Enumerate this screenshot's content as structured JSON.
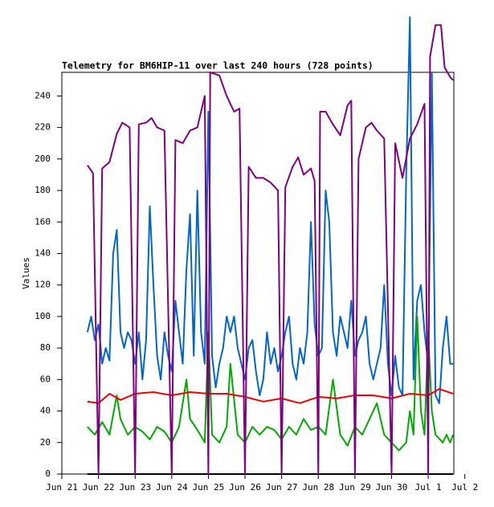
{
  "chart_data": {
    "type": "line",
    "title": "Telemetry for BM6HIP-11 over last 240 hours (728 points)",
    "y_label": "Values",
    "xlim": [
      0,
      10.7
    ],
    "ylim": [
      0,
      255
    ],
    "xticks": [
      {
        "value": 0,
        "label": "Jun 21"
      },
      {
        "value": 1,
        "label": "Jun 22"
      },
      {
        "value": 2,
        "label": "Jun 23"
      },
      {
        "value": 3,
        "label": "Jun 24"
      },
      {
        "value": 4,
        "label": "Jun 25"
      },
      {
        "value": 5,
        "label": "Jun 26"
      },
      {
        "value": 6,
        "label": "Jun 27"
      },
      {
        "value": 7,
        "label": "Jun 28"
      },
      {
        "value": 8,
        "label": "Jun 29"
      },
      {
        "value": 9,
        "label": "Jun 30"
      },
      {
        "value": 10,
        "label": "Jul 1"
      },
      {
        "value": 11,
        "label": "Jul 2"
      }
    ],
    "yticks": [
      0,
      20,
      40,
      60,
      80,
      100,
      120,
      140,
      160,
      180,
      200,
      220,
      240
    ],
    "grid": false,
    "series": [
      {
        "color": "#0066cc",
        "x": [
          0.7,
          0.8,
          0.9,
          1.0,
          1.1,
          1.2,
          1.3,
          1.4,
          1.5,
          1.6,
          1.7,
          1.8,
          1.9,
          2.0,
          2.1,
          2.2,
          2.3,
          2.4,
          2.5,
          2.6,
          2.7,
          2.8,
          2.9,
          3.0,
          3.1,
          3.2,
          3.3,
          3.4,
          3.5,
          3.6,
          3.7,
          3.8,
          3.9,
          4.0,
          4.1,
          4.2,
          4.3,
          4.4,
          4.5,
          4.6,
          4.7,
          4.8,
          4.9,
          5.0,
          5.1,
          5.2,
          5.3,
          5.4,
          5.5,
          5.6,
          5.7,
          5.8,
          5.9,
          6.0,
          6.1,
          6.2,
          6.3,
          6.4,
          6.5,
          6.6,
          6.7,
          6.8,
          6.9,
          7.0,
          7.1,
          7.2,
          7.3,
          7.4,
          7.5,
          7.6,
          7.7,
          7.8,
          7.9,
          8.0,
          8.1,
          8.2,
          8.3,
          8.4,
          8.5,
          8.6,
          8.7,
          8.8,
          8.9,
          9.0,
          9.1,
          9.2,
          9.3,
          9.4,
          9.5,
          9.6,
          9.7,
          9.8,
          9.9,
          10.0,
          10.1,
          10.2,
          10.3,
          10.4,
          10.5,
          10.6,
          10.68
        ],
        "values": [
          90,
          100,
          85,
          95,
          70,
          80,
          72,
          140,
          155,
          90,
          80,
          90,
          85,
          70,
          90,
          60,
          85,
          170,
          120,
          75,
          60,
          90,
          75,
          65,
          110,
          90,
          70,
          130,
          165,
          75,
          180,
          90,
          70,
          230,
          75,
          55,
          70,
          80,
          100,
          90,
          100,
          80,
          70,
          60,
          80,
          85,
          65,
          50,
          60,
          90,
          70,
          80,
          65,
          75,
          90,
          100,
          70,
          60,
          80,
          70,
          90,
          160,
          95,
          75,
          80,
          180,
          160,
          90,
          75,
          100,
          90,
          80,
          110,
          75,
          85,
          90,
          100,
          70,
          60,
          70,
          80,
          120,
          70,
          50,
          75,
          55,
          50,
          190,
          290,
          60,
          110,
          120,
          90,
          70,
          255,
          50,
          45,
          80,
          100,
          70,
          70
        ]
      },
      {
        "color": "#00aa00",
        "x": [
          0.7,
          0.9,
          1.1,
          1.3,
          1.5,
          1.6,
          1.8,
          2.0,
          2.2,
          2.4,
          2.6,
          2.8,
          3.0,
          3.2,
          3.4,
          3.5,
          3.7,
          3.9,
          4.0,
          4.1,
          4.3,
          4.5,
          4.6,
          4.8,
          5.0,
          5.2,
          5.4,
          5.6,
          5.8,
          6.0,
          6.2,
          6.4,
          6.6,
          6.8,
          7.0,
          7.2,
          7.4,
          7.6,
          7.8,
          8.0,
          8.2,
          8.4,
          8.6,
          8.8,
          9.0,
          9.2,
          9.4,
          9.5,
          9.6,
          9.7,
          9.8,
          9.9,
          10.0,
          10.1,
          10.2,
          10.4,
          10.5,
          10.6,
          10.68
        ],
        "values": [
          30,
          25,
          33,
          25,
          50,
          35,
          25,
          30,
          27,
          22,
          30,
          27,
          20,
          30,
          60,
          35,
          28,
          20,
          90,
          25,
          20,
          30,
          70,
          25,
          20,
          30,
          25,
          30,
          28,
          22,
          30,
          25,
          35,
          28,
          30,
          25,
          60,
          25,
          18,
          30,
          25,
          35,
          45,
          25,
          20,
          15,
          20,
          40,
          25,
          100,
          40,
          25,
          90,
          40,
          25,
          20,
          25,
          20,
          25
        ]
      },
      {
        "color": "#ee0000",
        "x": [
          0.7,
          1.0,
          1.3,
          1.6,
          2.0,
          2.5,
          3.0,
          3.5,
          4.0,
          4.5,
          5.0,
          5.5,
          6.0,
          6.5,
          7.0,
          7.5,
          8.0,
          8.5,
          9.0,
          9.5,
          10.0,
          10.3,
          10.68
        ],
        "values": [
          46,
          45,
          51,
          47,
          51,
          52,
          50,
          52,
          51,
          51,
          49,
          46,
          48,
          45,
          49,
          48,
          50,
          50,
          48,
          51,
          50,
          54,
          51
        ]
      },
      {
        "color": "#000000",
        "x": [
          0.7,
          10.68
        ],
        "values": [
          0,
          0
        ]
      },
      {
        "color": "#800080",
        "x": [
          0.7,
          0.85,
          1.0,
          1.1,
          1.3,
          1.5,
          1.65,
          1.85,
          2.0,
          2.1,
          2.3,
          2.45,
          2.6,
          2.8,
          3.0,
          3.1,
          3.3,
          3.5,
          3.7,
          3.9,
          4.0,
          4.05,
          4.3,
          4.5,
          4.7,
          4.85,
          5.0,
          5.1,
          5.3,
          5.5,
          5.7,
          5.9,
          6.0,
          6.1,
          6.3,
          6.45,
          6.6,
          6.8,
          6.9,
          7.0,
          7.05,
          7.2,
          7.4,
          7.6,
          7.8,
          7.9,
          8.0,
          8.1,
          8.3,
          8.45,
          8.6,
          8.8,
          9.0,
          9.1,
          9.3,
          9.5,
          9.7,
          9.9,
          10.0,
          10.05,
          10.2,
          10.35,
          10.45,
          10.6,
          10.68
        ],
        "values": [
          196,
          191,
          0,
          194,
          198,
          216,
          223,
          220,
          0,
          222,
          223,
          226,
          220,
          218,
          0,
          212,
          210,
          218,
          220,
          240,
          0,
          255,
          253,
          240,
          230,
          232,
          0,
          195,
          188,
          188,
          185,
          180,
          0,
          182,
          195,
          201,
          190,
          194,
          186,
          0,
          230,
          230,
          222,
          215,
          234,
          237,
          0,
          200,
          220,
          223,
          218,
          213,
          0,
          210,
          188,
          213,
          222,
          235,
          0,
          265,
          285,
          285,
          258,
          252,
          250
        ]
      }
    ]
  }
}
